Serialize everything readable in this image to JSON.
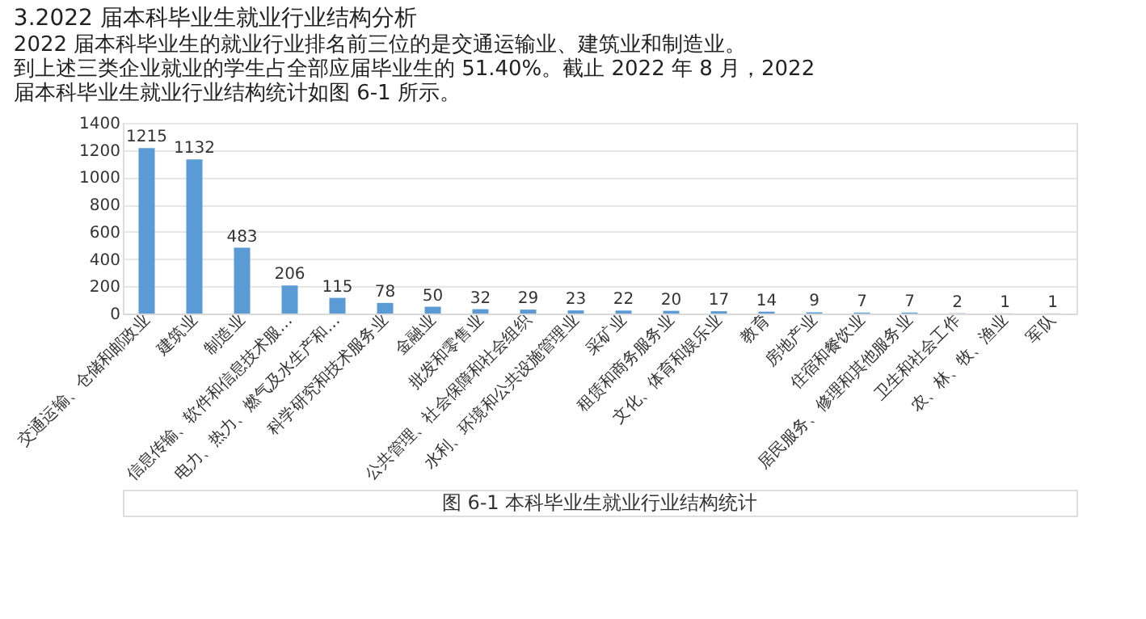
{
  "chart_data": {
    "type": "bar",
    "title": "3.2022 届本科毕业生就业行业结构分析",
    "subtitle": [
      "2022 届本科毕业生的就业行业排名前三位的是交通运输业、建筑业和制造业。",
      "到上述三类企业就业的学生占全部应届毕业生的 51.40%。截止 2022 年 8 月，2022",
      "届本科毕业生就业行业结构统计如图 6-1 所示。"
    ],
    "categories": [
      "交通运输、仓储和邮政业",
      "建筑业",
      "制造业",
      "信息传输、软件和信息技术服…",
      "电力、热力、燃气及水生产和…",
      "科学研究和技术服务业",
      "金融业",
      "批发和零售业",
      "公共管理、社会保障和社会组织",
      "水利、环境和公共设施管理业",
      "采矿业",
      "租赁和商务服务业",
      "文化、体育和娱乐业",
      "教育",
      "房地产业",
      "住宿和餐饮业",
      "居民服务、修理和其他服务业",
      "卫生和社会工作",
      "农、林、牧、渔业",
      "军队"
    ],
    "values": [
      1215,
      1132,
      483,
      206,
      115,
      78,
      50,
      32,
      29,
      23,
      22,
      20,
      17,
      14,
      9,
      7,
      7,
      2,
      1,
      1
    ],
    "color": "#5b9bd5",
    "ylim": [
      0,
      1400
    ],
    "yticks": [
      0,
      200,
      400,
      600,
      800,
      1000,
      1200,
      1400
    ],
    "grid": "y",
    "data_labels": true,
    "annotations": [
      "图 6-1 本科毕业生就业行业结构统计"
    ]
  }
}
